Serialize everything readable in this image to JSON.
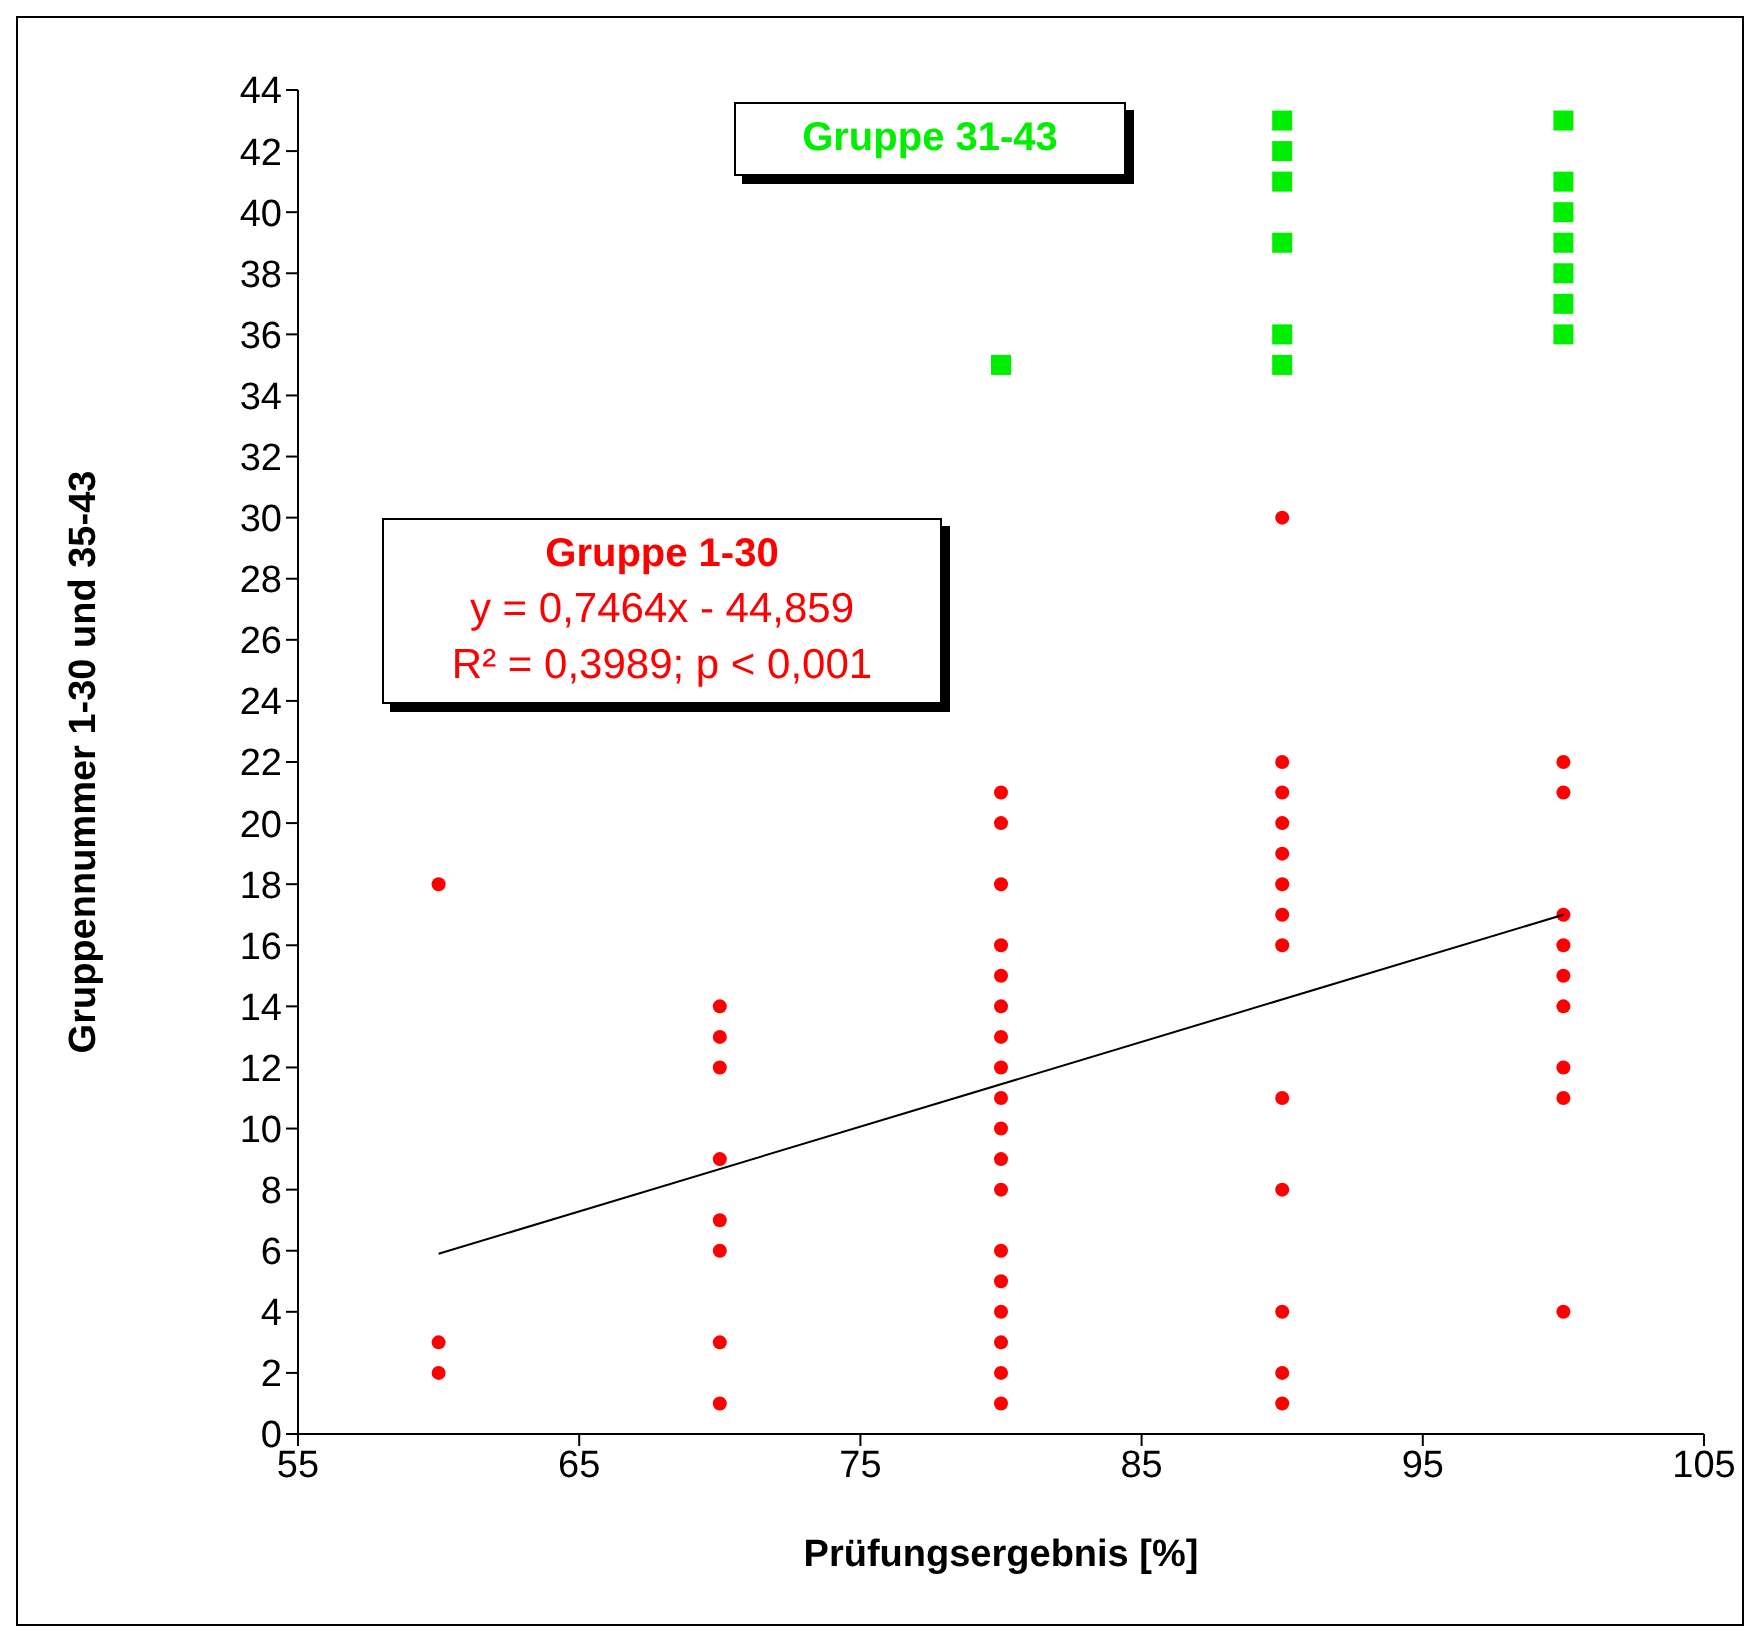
{
  "chart_data": {
    "type": "scatter",
    "xlabel": "Prüfungsergebnis [%]",
    "ylabel": "Gruppennummer 1-30 und 35-43",
    "xlim": [
      55,
      105
    ],
    "xticks": [
      55,
      65,
      75,
      85,
      95,
      105
    ],
    "ylim": [
      0,
      44
    ],
    "yticks": [
      0,
      2,
      4,
      6,
      8,
      10,
      12,
      14,
      16,
      18,
      20,
      22,
      24,
      26,
      28,
      30,
      32,
      34,
      36,
      38,
      40,
      42,
      44
    ],
    "annotations": [
      "y = 0,7464x - 44,859",
      "R² = 0,3989; p < 0,001"
    ],
    "series": [
      {
        "name": "Gruppe 1-30",
        "color": "#ff0000",
        "marker": "circle",
        "x": [
          60,
          60,
          60,
          70,
          70,
          70,
          70,
          70,
          70,
          70,
          70,
          80,
          80,
          80,
          80,
          80,
          80,
          80,
          80,
          80,
          80,
          80,
          80,
          80,
          80,
          80,
          80,
          80,
          80,
          90,
          90,
          90,
          90,
          90,
          90,
          90,
          90,
          90,
          90,
          90,
          90,
          90,
          100,
          100,
          100,
          100,
          100,
          100,
          100,
          100,
          100
        ],
        "values": [
          18,
          3,
          2,
          14,
          13,
          12,
          9,
          7,
          6,
          3,
          1,
          21,
          20,
          18,
          16,
          15,
          14,
          13,
          12,
          11,
          10,
          9,
          8,
          6,
          5,
          4,
          3,
          2,
          1,
          30,
          22,
          21,
          20,
          19,
          18,
          17,
          16,
          11,
          8,
          4,
          2,
          1,
          22,
          21,
          17,
          16,
          15,
          14,
          12,
          11,
          4
        ]
      },
      {
        "name": "Gruppe 31-43",
        "color": "#00ee00",
        "marker": "square",
        "x": [
          80,
          90,
          90,
          90,
          90,
          90,
          90,
          100,
          100,
          100,
          100,
          100,
          100,
          100
        ],
        "values": [
          35,
          43,
          42,
          41,
          39,
          36,
          35,
          43,
          41,
          40,
          39,
          38,
          37,
          36
        ]
      },
      {
        "type": "line",
        "color": "#000000",
        "marker": "none",
        "x": [
          60,
          100
        ],
        "values": [
          5.9,
          17.0
        ]
      }
    ]
  }
}
